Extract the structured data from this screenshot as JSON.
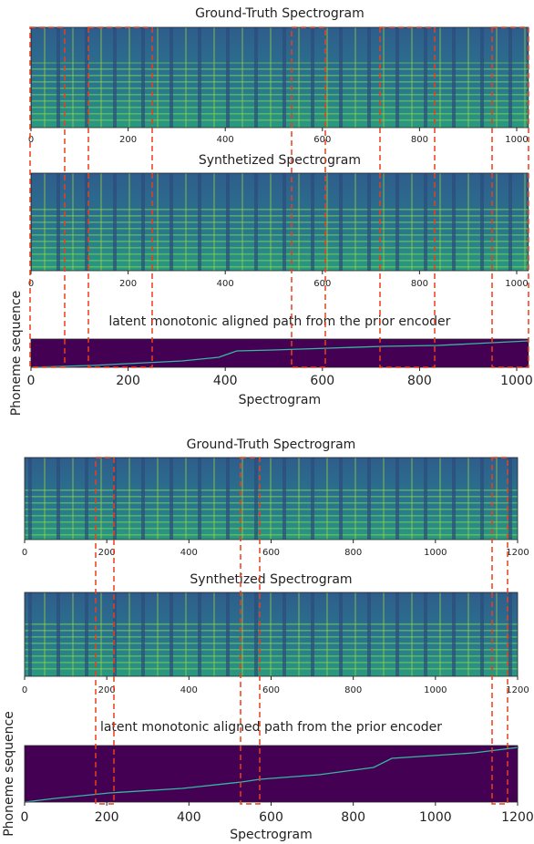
{
  "figures": [
    {
      "xlim": [
        0,
        1024
      ],
      "xticks": [
        0,
        200,
        400,
        600,
        800,
        1000
      ],
      "panels": [
        {
          "title": "Ground-Truth Spectrogram"
        },
        {
          "title": "Synthetized Spectrogram"
        },
        {
          "title": "latent monotonic aligned path from the prior encoder",
          "xlabel": "Spectrogram",
          "ylabel": "Phoneme sequence"
        }
      ]
    },
    {
      "xlim": [
        0,
        1200
      ],
      "xticks": [
        0,
        200,
        400,
        600,
        800,
        1000,
        1200
      ],
      "panels": [
        {
          "title": "Ground-Truth Spectrogram"
        },
        {
          "title": "Synthetized Spectrogram"
        },
        {
          "title": "latent monotonic aligned path from the prior encoder",
          "xlabel": "Spectrogram",
          "ylabel": "Phoneme sequence"
        }
      ]
    }
  ]
}
